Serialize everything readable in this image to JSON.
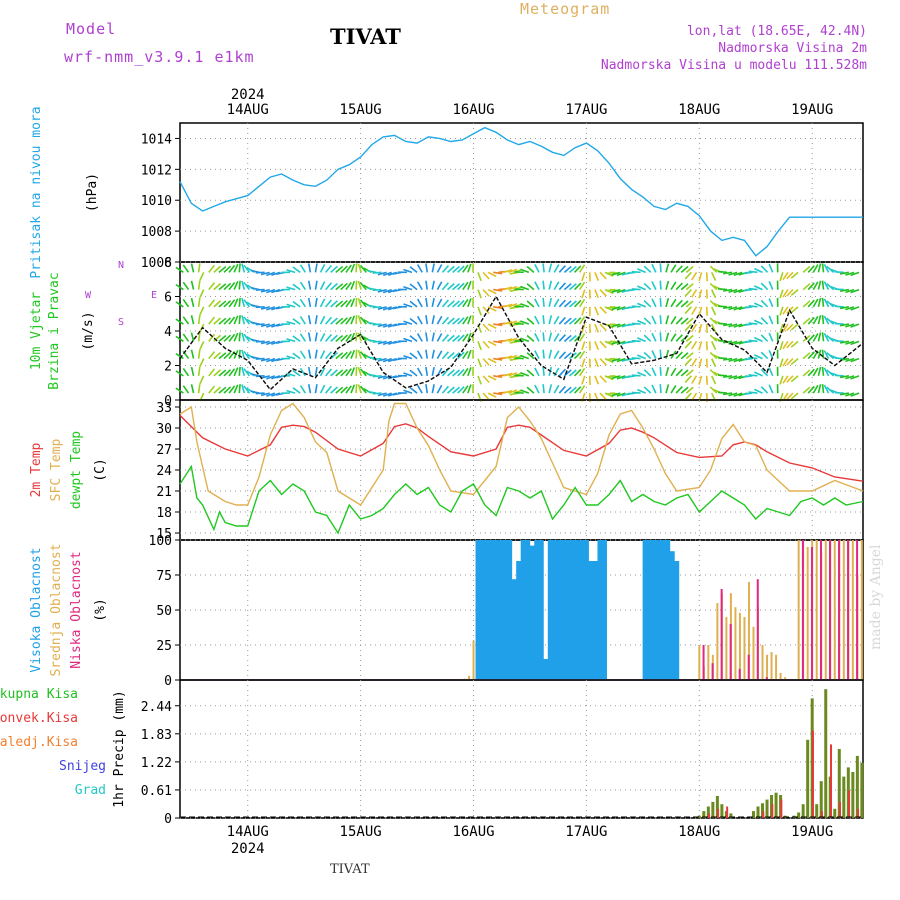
{
  "header": {
    "model_label": "Model",
    "model_name": "wrf-nmm_v3.9.1 e1km",
    "station": "TIVAT",
    "meteogram_label": "Meteogram",
    "lonlat": "lon,lat (18.65E, 42.4N)",
    "altitude": "Nadmorska Visina 2m",
    "altitude_model": "Nadmorska Visina u modelu 111.528m"
  },
  "footer": {
    "station": "TIVAT",
    "credit": "made by Angel"
  },
  "colors": {
    "pressure": "#22a8e8",
    "temp2m": "#e83838",
    "sfc": "#e0b050",
    "dewpt": "#20c820",
    "high": "#20a0e8",
    "mid": "#e0b050",
    "low": "#e02880",
    "total": "#20c020",
    "convective": "#e83838",
    "frozen": "#f08030",
    "snow": "#4040e0",
    "hail": "#20c8c8"
  },
  "chart_data": [
    {
      "type": "line",
      "panel": "pressure",
      "ylabel": [
        "Pritisak na nivou mora",
        "(hPa)"
      ],
      "ylim": [
        1006,
        1015
      ],
      "yticks": [
        1006,
        1008,
        1010,
        1012,
        1014
      ],
      "year": "2024",
      "x_days": [
        "14AUG",
        "15AUG",
        "16AUG",
        "17AUG",
        "18AUG",
        "19AUG"
      ],
      "x_range_days": [
        -0.6,
        5.45
      ],
      "grid": true,
      "series": [
        {
          "x": [
            -0.6,
            -0.5,
            -0.4,
            -0.3,
            -0.2,
            -0.1,
            0,
            0.2,
            0.3,
            0.4,
            0.5,
            0.6,
            0.7,
            0.8,
            0.9,
            1.0,
            1.1,
            1.2,
            1.3,
            1.4,
            1.5,
            1.6,
            1.7,
            1.8,
            1.9,
            2.0,
            2.1,
            2.2,
            2.3,
            2.4,
            2.5,
            2.6,
            2.7,
            2.8,
            2.9,
            3.0,
            3.1,
            3.2,
            3.3,
            3.4,
            3.5,
            3.6,
            3.7,
            3.8,
            3.9,
            4.0,
            4.1,
            4.2,
            4.3,
            4.4,
            4.5,
            4.6,
            4.7,
            4.8,
            4.9,
            5.0,
            5.1,
            5.2,
            5.3,
            5.45
          ],
          "values": [
            1011.2,
            1009.8,
            1009.3,
            1009.6,
            1009.9,
            1010.1,
            1010.3,
            1011.5,
            1011.7,
            1011.3,
            1011.0,
            1010.9,
            1011.3,
            1012.0,
            1012.3,
            1012.8,
            1013.6,
            1014.1,
            1014.2,
            1013.8,
            1013.7,
            1014.1,
            1014.0,
            1013.8,
            1013.9,
            1014.3,
            1014.7,
            1014.4,
            1013.9,
            1013.6,
            1013.8,
            1013.5,
            1013.1,
            1012.9,
            1013.4,
            1013.7,
            1013.2,
            1012.4,
            1011.4,
            1010.7,
            1010.2,
            1009.6,
            1009.4,
            1009.8,
            1009.6,
            1009.0,
            1008.0,
            1007.4,
            1007.6,
            1007.4,
            1006.4,
            1007.0,
            1008.0,
            1008.9,
            1008.9,
            1008.9,
            1008.9,
            1008.9,
            1008.9,
            1008.9
          ]
        }
      ]
    },
    {
      "type": "line",
      "panel": "wind",
      "ylabel": [
        "10m Vjetar",
        "Brzina i Pravac",
        "(m/s)"
      ],
      "legend_compass": [
        "N",
        "W",
        "E",
        "S"
      ],
      "ylim": [
        0,
        8
      ],
      "yticks": [
        0,
        2,
        4,
        6,
        8
      ],
      "grid": true,
      "series": [
        {
          "name": "brzina",
          "x": [
            -0.6,
            -0.4,
            -0.2,
            0,
            0.2,
            0.4,
            0.6,
            0.8,
            1.0,
            1.2,
            1.4,
            1.6,
            1.8,
            2.0,
            2.2,
            2.4,
            2.6,
            2.8,
            3.0,
            3.2,
            3.4,
            3.6,
            3.8,
            4.0,
            4.2,
            4.4,
            4.6,
            4.8,
            5.0,
            5.2,
            5.45
          ],
          "values": [
            2.4,
            4.2,
            3.0,
            2.3,
            0.6,
            1.8,
            1.3,
            3.0,
            3.8,
            1.6,
            0.7,
            1.1,
            1.9,
            3.8,
            6.0,
            3.6,
            2.0,
            1.2,
            4.8,
            4.3,
            2.1,
            2.3,
            2.7,
            5.0,
            3.5,
            2.9,
            1.6,
            5.2,
            3.0,
            2.0,
            3.3
          ]
        }
      ]
    },
    {
      "type": "line",
      "panel": "temperature",
      "ylabel": [
        "2m Temp",
        "SFC Temp",
        "dewpt Temp",
        "(C)"
      ],
      "ylim": [
        14,
        34
      ],
      "yticks": [
        15,
        18,
        21,
        24,
        27,
        30,
        33
      ],
      "grid": true,
      "series": [
        {
          "name": "2m Temp",
          "x": [
            -0.6,
            -0.5,
            -0.4,
            -0.2,
            0,
            0.2,
            0.3,
            0.4,
            0.5,
            0.6,
            0.8,
            1.0,
            1.2,
            1.3,
            1.4,
            1.5,
            1.6,
            1.8,
            2.0,
            2.2,
            2.3,
            2.4,
            2.5,
            2.6,
            2.8,
            3.0,
            3.2,
            3.3,
            3.4,
            3.5,
            3.6,
            3.8,
            4.0,
            4.2,
            4.3,
            4.4,
            4.5,
            4.6,
            4.8,
            5.0,
            5.2,
            5.45
          ],
          "values": [
            31.8,
            30.2,
            28.6,
            27.0,
            26.0,
            27.6,
            30.1,
            30.4,
            30.2,
            29.4,
            27.0,
            26.0,
            27.8,
            30.2,
            30.6,
            30.0,
            28.8,
            26.6,
            26.0,
            27.0,
            30.1,
            30.4,
            30.1,
            29.0,
            26.8,
            26.0,
            27.8,
            29.7,
            30.0,
            29.4,
            28.6,
            26.5,
            25.8,
            26.0,
            27.6,
            28.0,
            27.6,
            26.6,
            25.0,
            24.3,
            23.0,
            22.4
          ]
        },
        {
          "name": "SFC Temp",
          "x": [
            -0.6,
            -0.5,
            -0.45,
            -0.35,
            -0.2,
            -0.1,
            0,
            0.1,
            0.2,
            0.3,
            0.4,
            0.5,
            0.6,
            0.7,
            0.8,
            1.0,
            1.2,
            1.25,
            1.3,
            1.4,
            1.5,
            1.6,
            1.7,
            1.8,
            2.0,
            2.2,
            2.3,
            2.4,
            2.5,
            2.6,
            2.7,
            2.8,
            3.0,
            3.1,
            3.2,
            3.3,
            3.4,
            3.5,
            3.6,
            3.7,
            3.8,
            4.0,
            4.1,
            4.2,
            4.3,
            4.4,
            4.5,
            4.6,
            4.8,
            5.0,
            5.2,
            5.45
          ],
          "values": [
            32.0,
            33.0,
            28.0,
            21.0,
            19.5,
            19.0,
            19.0,
            23.0,
            29.0,
            32.5,
            33.5,
            31.5,
            28.0,
            26.5,
            21.0,
            19.0,
            24.0,
            31.0,
            33.5,
            33.5,
            30.0,
            27.5,
            24.0,
            21.0,
            20.5,
            24.5,
            31.5,
            33.0,
            31.0,
            28.5,
            25.0,
            21.5,
            20.5,
            23.5,
            29.0,
            32.0,
            32.5,
            30.0,
            27.0,
            23.5,
            21.0,
            21.5,
            24.0,
            28.5,
            30.5,
            28.0,
            27.5,
            24.0,
            21.0,
            21.0,
            22.5,
            21.0
          ]
        },
        {
          "name": "dewpt Temp",
          "x": [
            -0.6,
            -0.5,
            -0.45,
            -0.4,
            -0.3,
            -0.25,
            -0.2,
            -0.1,
            0,
            0.1,
            0.2,
            0.3,
            0.4,
            0.5,
            0.6,
            0.7,
            0.8,
            0.9,
            1.0,
            1.1,
            1.2,
            1.3,
            1.4,
            1.5,
            1.6,
            1.7,
            1.8,
            1.9,
            2.0,
            2.1,
            2.2,
            2.3,
            2.4,
            2.5,
            2.6,
            2.7,
            2.8,
            2.9,
            3.0,
            3.1,
            3.2,
            3.3,
            3.4,
            3.5,
            3.6,
            3.7,
            3.8,
            3.9,
            4.0,
            4.1,
            4.2,
            4.3,
            4.4,
            4.5,
            4.6,
            4.7,
            4.8,
            4.9,
            5.0,
            5.1,
            5.2,
            5.3,
            5.45
          ],
          "values": [
            22.0,
            24.5,
            20.0,
            19.0,
            15.5,
            18.0,
            16.5,
            16.0,
            16.0,
            21.0,
            22.5,
            20.5,
            22.0,
            21.0,
            18.0,
            17.5,
            15.0,
            19.0,
            17.0,
            17.5,
            18.5,
            20.5,
            22.0,
            20.5,
            21.5,
            19.0,
            18.0,
            21.0,
            22.0,
            19.0,
            17.5,
            21.5,
            21.0,
            20.0,
            21.0,
            17.0,
            19.0,
            21.5,
            19.0,
            19.0,
            20.5,
            22.5,
            19.5,
            20.5,
            19.5,
            19.0,
            20.0,
            20.5,
            18.0,
            19.5,
            21.0,
            20.0,
            19.0,
            17.0,
            18.5,
            18.0,
            17.5,
            19.5,
            20.0,
            19.0,
            20.0,
            19.0,
            19.5
          ]
        }
      ]
    },
    {
      "type": "bar",
      "panel": "cloud",
      "ylabel": [
        "Visoka Oblacnost",
        "Srednja Oblacnost",
        "Niska Oblacnost",
        "(%)"
      ],
      "ylim": [
        0,
        100
      ],
      "yticks": [
        0,
        25,
        50,
        75,
        100
      ],
      "grid": true,
      "series": [
        {
          "name": "Visoka Oblacnost",
          "x": [
            2.04,
            2.08,
            2.12,
            2.16,
            2.2,
            2.24,
            2.28,
            2.32,
            2.36,
            2.4,
            2.44,
            2.48,
            2.52,
            2.56,
            2.6,
            2.64,
            2.68,
            2.72,
            2.76,
            2.8,
            2.84,
            2.88,
            2.92,
            2.96,
            3.0,
            3.04,
            3.08,
            3.12,
            3.16,
            3.2,
            3.24,
            3.28,
            3.32,
            3.36,
            3.4,
            3.44,
            3.48,
            3.52,
            3.56,
            3.6,
            3.64,
            3.68,
            3.72,
            3.76,
            3.8,
            3.84,
            3.88,
            3.92,
            3.96,
            4.0,
            4.04,
            4.08,
            4.12,
            4.16,
            4.2,
            4.24,
            4.28,
            4.32,
            4.36,
            4.4,
            4.44,
            4.48,
            4.52,
            4.56,
            4.6,
            4.64,
            4.68,
            4.72,
            4.76,
            4.8,
            4.84,
            4.88,
            4.92,
            4.96,
            5.0,
            5.04,
            5.08,
            5.12,
            5.16,
            5.2,
            5.24,
            5.28,
            5.32,
            5.36,
            5.4
          ],
          "values": [
            100,
            100,
            100,
            100,
            100,
            100,
            100,
            100,
            72,
            85,
            100,
            100,
            96,
            100,
            100,
            15,
            100,
            100,
            100,
            100,
            100,
            100,
            100,
            100,
            100,
            85,
            85,
            100,
            100,
            0,
            0,
            0,
            0,
            0,
            0,
            0,
            0,
            100,
            100,
            100,
            100,
            100,
            100,
            92,
            85,
            0,
            0,
            0,
            0,
            0,
            0,
            0,
            0,
            0,
            0,
            0,
            0,
            0,
            0,
            0,
            0,
            0,
            0,
            0,
            0,
            0,
            0,
            0,
            0,
            0,
            0,
            0,
            0,
            0,
            0,
            0,
            0,
            0,
            0,
            0,
            0,
            0,
            0,
            0,
            0
          ]
        },
        {
          "name": "Srednja Oblacnost",
          "x": [
            1.92,
            1.96,
            2.0,
            4.0,
            4.04,
            4.08,
            4.12,
            4.16,
            4.2,
            4.24,
            4.28,
            4.32,
            4.36,
            4.4,
            4.44,
            4.48,
            4.52,
            4.56,
            4.6,
            4.64,
            4.68,
            4.72,
            4.76,
            4.8,
            4.84,
            4.88,
            4.92,
            4.96,
            5.0,
            5.04,
            5.08,
            5.12,
            5.16,
            5.2,
            5.24,
            5.28,
            5.32,
            5.36,
            5.4,
            5.44
          ],
          "values": [
            1,
            3,
            28,
            25,
            10,
            25,
            18,
            55,
            62,
            45,
            62,
            52,
            48,
            45,
            70,
            38,
            52,
            25,
            18,
            20,
            18,
            5,
            2,
            0,
            0,
            100,
            100,
            95,
            100,
            100,
            92,
            100,
            100,
            100,
            100,
            100,
            100,
            100,
            75,
            100
          ]
        },
        {
          "name": "Niska Oblacnost",
          "x": [
            4.02,
            4.1,
            4.18,
            4.26,
            4.34,
            4.42,
            4.5,
            4.58,
            4.66,
            4.74,
            4.82,
            4.9,
            4.98,
            5.06,
            5.14,
            5.22,
            5.3,
            5.38
          ],
          "values": [
            25,
            12,
            65,
            40,
            8,
            18,
            72,
            2,
            0,
            0,
            0,
            100,
            95,
            100,
            100,
            100,
            100,
            100
          ]
        }
      ]
    },
    {
      "type": "bar",
      "panel": "precip",
      "ylabel": [
        "1hr Precip (mm)"
      ],
      "legend": [
        "Ukupna Kisa",
        "Konvek.Kisa",
        "Zaledj.Kisa",
        "Snijeg",
        "Grad"
      ],
      "ylim": [
        0,
        3.0
      ],
      "yticks": [
        0,
        0.61,
        1.22,
        1.83,
        2.44
      ],
      "grid": true,
      "series": [
        {
          "name": "Ukupna Kisa",
          "x": [
            4.0,
            4.04,
            4.08,
            4.12,
            4.16,
            4.2,
            4.24,
            4.28,
            4.48,
            4.52,
            4.56,
            4.6,
            4.64,
            4.68,
            4.72,
            4.76,
            4.8,
            4.84,
            4.88,
            4.92,
            4.96,
            5.0,
            5.04,
            5.08,
            5.12,
            5.16,
            5.2,
            5.24,
            5.28,
            5.32,
            5.36,
            5.4,
            5.44
          ],
          "values": [
            0.05,
            0.15,
            0.25,
            0.35,
            0.48,
            0.3,
            0.15,
            0.1,
            0.15,
            0.25,
            0.32,
            0.4,
            0.5,
            0.55,
            0.5,
            0.05,
            0.0,
            0.05,
            0.12,
            0.3,
            1.7,
            2.6,
            0.3,
            0.8,
            2.8,
            0.9,
            0.2,
            1.5,
            0.9,
            1.1,
            1.0,
            1.35,
            1.2
          ]
        },
        {
          "name": "Konvek.Kisa",
          "x": [
            4.06,
            4.14,
            4.22,
            4.54,
            4.62,
            4.7,
            4.98,
            5.06,
            5.14,
            5.22,
            5.3,
            5.38
          ],
          "values": [
            0.1,
            0.2,
            0.25,
            0.15,
            0.3,
            0.4,
            1.9,
            0.15,
            1.6,
            0.35,
            0.6,
            0.2
          ]
        }
      ]
    }
  ]
}
